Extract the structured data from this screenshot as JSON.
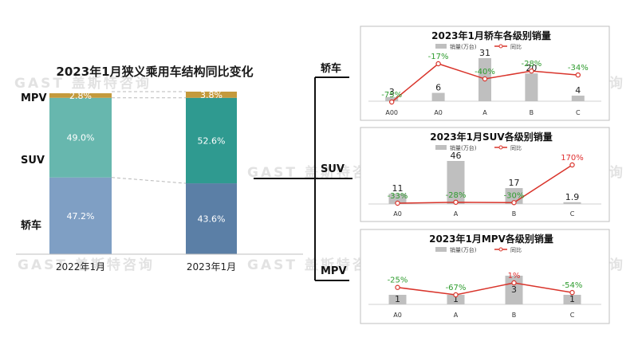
{
  "watermark": "GAST 盖斯特咨询",
  "main": {
    "title": "2023年1月狭义乘用车结构同比变化",
    "segments": [
      "MPV",
      "SUV",
      "轿车"
    ],
    "columns": [
      "2022年1月",
      "2023年1月"
    ]
  },
  "segment_labels": {
    "sedan": "轿车",
    "suv": "SUV",
    "mpv": "MPV"
  },
  "legend": {
    "sales": "销量(万台)",
    "yoy": "同比"
  },
  "colors": {
    "mpv": "#c49a3c",
    "suv_2022": "#67b7ae",
    "suv_2023": "#2f9a90",
    "sedan_2022": "#7f9fc4",
    "sedan_2023": "#5b7fa6",
    "bar_gray": "#bfbfbf",
    "line_red": "#d9342b",
    "label_green": "#2e9c2e",
    "label_red": "#e03030"
  },
  "chart_data": [
    {
      "type": "bar",
      "title": "2023年1月狭义乘用车结构同比变化",
      "stacked": true,
      "percent": true,
      "categories": [
        "2022年1月",
        "2023年1月"
      ],
      "series": [
        {
          "name": "轿车",
          "values": [
            47.2,
            43.6
          ],
          "labels": [
            "47.2%",
            "43.6%"
          ]
        },
        {
          "name": "SUV",
          "values": [
            49.0,
            52.6
          ],
          "labels": [
            "49.0%",
            "52.6%"
          ]
        },
        {
          "name": "MPV",
          "values": [
            2.8,
            3.8
          ],
          "labels": [
            "2.8%",
            "3.8%"
          ]
        }
      ]
    },
    {
      "type": "bar",
      "title": "2023年1月轿车各级别销量",
      "categories": [
        "A00",
        "A0",
        "A",
        "B",
        "C"
      ],
      "series": [
        {
          "name": "销量(万台)",
          "values": [
            3,
            6,
            31,
            20,
            4
          ],
          "labels": [
            "3",
            "6",
            "31",
            "20",
            "4"
          ]
        },
        {
          "name": "同比",
          "type": "line",
          "values": [
            -75,
            -17,
            -40,
            -28,
            -34
          ],
          "labels": [
            "-75%",
            "-17%",
            "-40%",
            "-28%",
            "-34%"
          ]
        }
      ],
      "legend": "top"
    },
    {
      "type": "bar",
      "title": "2023年1月SUV各级别销量",
      "categories": [
        "A0",
        "A",
        "B",
        "C"
      ],
      "series": [
        {
          "name": "销量(万台)",
          "values": [
            11,
            46,
            17,
            1.9
          ],
          "labels": [
            "11",
            "46",
            "17",
            "1.9"
          ]
        },
        {
          "name": "同比",
          "type": "line",
          "values": [
            -33,
            -28,
            -30,
            170
          ],
          "labels": [
            "-33%",
            "-28%",
            "-30%",
            "170%"
          ]
        }
      ],
      "legend": "top"
    },
    {
      "type": "bar",
      "title": "2023年1月MPV各级别销量",
      "categories": [
        "A0",
        "A",
        "B",
        "C"
      ],
      "series": [
        {
          "name": "销量(万台)",
          "values": [
            1,
            1,
            3,
            1
          ],
          "labels": [
            "1",
            "1",
            "3",
            "1"
          ]
        },
        {
          "name": "同比",
          "type": "line",
          "values": [
            -25,
            -67,
            1,
            -54
          ],
          "labels": [
            "-25%",
            "-67%",
            "1%",
            "-54%"
          ]
        }
      ],
      "legend": "top"
    }
  ]
}
